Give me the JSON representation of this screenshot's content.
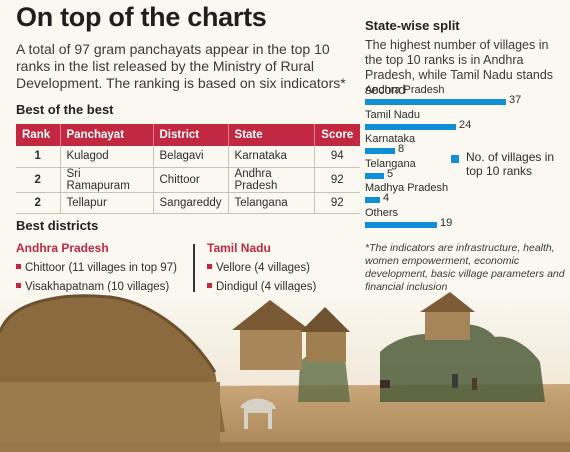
{
  "header": {
    "title": "On top of the charts",
    "intro": "A total of 97 gram panchayats appear in the top 10 ranks in the list released by the Ministry of Rural Development. The ranking is based on six indicators*"
  },
  "best": {
    "heading": "Best of the best",
    "columns": [
      "Rank",
      "Panchayat",
      "District",
      "State",
      "Score"
    ],
    "rows": [
      [
        "1",
        "Kulagod",
        "Belagavi",
        "Karnataka",
        "94"
      ],
      [
        "2",
        "Sri Ramapuram",
        "Chittoor",
        "Andhra Pradesh",
        "92"
      ],
      [
        "2",
        "Tellapur",
        "Sangareddy",
        "Telangana",
        "92"
      ]
    ]
  },
  "districts": {
    "heading": "Best districts",
    "left": {
      "state": "Andhra Pradesh",
      "items": [
        "Chittoor (11 villages in top 97)",
        "Visakhapatnam (10 villages)"
      ]
    },
    "right": {
      "state": "Tamil Nadu",
      "items": [
        "Vellore (4 villages)",
        "Dindigul (4 villages)"
      ]
    }
  },
  "statewise": {
    "heading": "State-wise split",
    "subtitle": "The highest number of villages in the top 10 ranks is in Andhra Pradesh, while Tamil Nadu stands second",
    "legend": "No. of villages in top 10 ranks",
    "footnote": "*The indicators are infrastructure, health, women empowerment, economic development, basic village parameters and financial inclusion"
  },
  "chart_data": {
    "type": "bar",
    "orientation": "horizontal",
    "categories": [
      "Andhra Pradesh",
      "Tamil Nadu",
      "Karnataka",
      "Telangana",
      "Madhya Pradesh",
      "Others"
    ],
    "values": [
      37,
      24,
      8,
      5,
      4,
      19
    ],
    "legend": "No. of villages in top 10 ranks",
    "bar_color": "#0f8fd6"
  },
  "colors": {
    "accent": "#c2283f",
    "bar": "#0f8fd6",
    "background": "#fbf8f1"
  }
}
